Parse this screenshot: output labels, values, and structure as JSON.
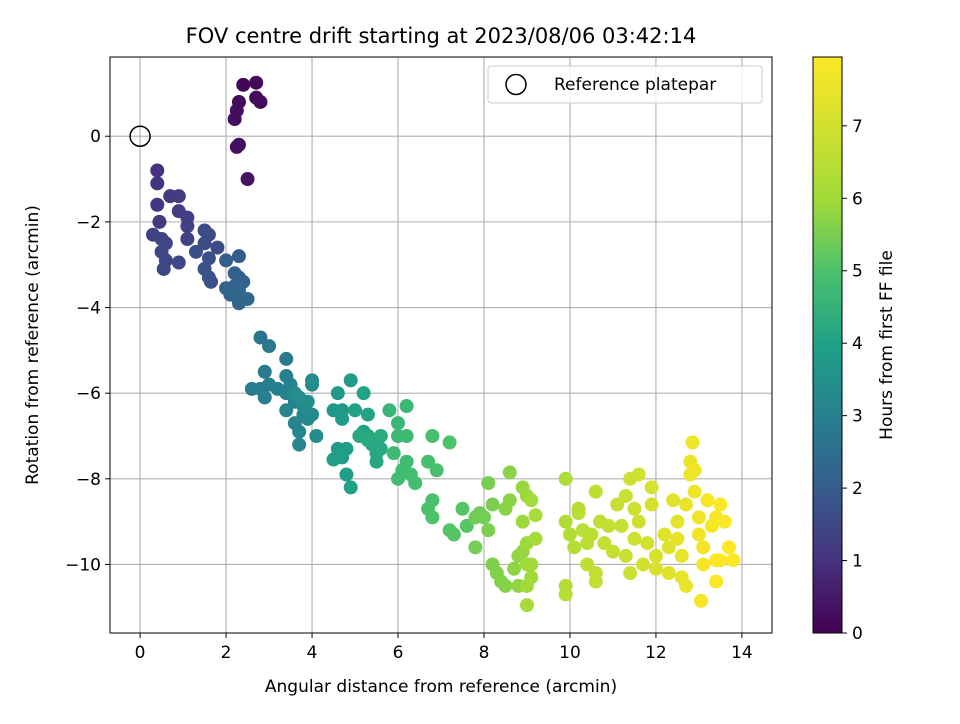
{
  "chart_data": {
    "type": "scatter",
    "title": "FOV centre drift starting at 2023/08/06 03:42:14",
    "xlabel": "Angular distance from reference (arcmin)",
    "ylabel": "Rotation from reference (arcmin)",
    "xlim": [
      -0.7,
      14.7
    ],
    "ylim": [
      -11.6,
      1.85
    ],
    "xticks": [
      0,
      2,
      4,
      6,
      8,
      10,
      12,
      14
    ],
    "yticks": [
      0,
      -2,
      -4,
      -6,
      -8,
      -10
    ],
    "xtick_labels": [
      "0",
      "2",
      "4",
      "6",
      "8",
      "10",
      "12",
      "14"
    ],
    "ytick_labels": [
      "0",
      "−2",
      "−4",
      "−6",
      "−8",
      "−10"
    ],
    "grid": true,
    "legend": {
      "placement": "top-right",
      "entries": [
        "Reference platepar"
      ]
    },
    "reference_point": {
      "x": 0,
      "y": 0,
      "name": "Reference platepar",
      "marker": "open-circle"
    },
    "colorbar": {
      "label": "Hours from first FF file",
      "range": [
        0,
        7.95
      ],
      "ticks": [
        0,
        1,
        2,
        3,
        4,
        5,
        6,
        7
      ],
      "tick_labels": [
        "0",
        "1",
        "2",
        "3",
        "4",
        "5",
        "6",
        "7"
      ],
      "colormap": "viridis"
    },
    "points": [
      {
        "x": 2.4,
        "y": 1.2,
        "h": 0.1
      },
      {
        "x": 2.7,
        "y": 1.25,
        "h": 0.12
      },
      {
        "x": 2.7,
        "y": 0.9,
        "h": 0.15
      },
      {
        "x": 2.8,
        "y": 0.8,
        "h": 0.18
      },
      {
        "x": 2.3,
        "y": 0.8,
        "h": 0.2
      },
      {
        "x": 2.25,
        "y": 0.6,
        "h": 0.22
      },
      {
        "x": 2.2,
        "y": 0.4,
        "h": 0.25
      },
      {
        "x": 2.3,
        "y": -0.2,
        "h": 0.28
      },
      {
        "x": 2.25,
        "y": -0.25,
        "h": 0.3
      },
      {
        "x": 2.5,
        "y": -1.0,
        "h": 0.35
      },
      {
        "x": 0.4,
        "y": -0.8,
        "h": 1.0
      },
      {
        "x": 0.4,
        "y": -1.1,
        "h": 1.05
      },
      {
        "x": 0.4,
        "y": -1.6,
        "h": 1.1
      },
      {
        "x": 0.45,
        "y": -2.0,
        "h": 1.15
      },
      {
        "x": 0.7,
        "y": -1.4,
        "h": 1.2
      },
      {
        "x": 0.9,
        "y": -1.4,
        "h": 1.22
      },
      {
        "x": 0.9,
        "y": -1.75,
        "h": 1.25
      },
      {
        "x": 1.1,
        "y": -1.9,
        "h": 1.3
      },
      {
        "x": 1.1,
        "y": -2.1,
        "h": 1.32
      },
      {
        "x": 1.1,
        "y": -2.4,
        "h": 1.35
      },
      {
        "x": 0.3,
        "y": -2.3,
        "h": 1.4
      },
      {
        "x": 0.5,
        "y": -2.4,
        "h": 1.42
      },
      {
        "x": 0.6,
        "y": -2.5,
        "h": 1.44
      },
      {
        "x": 0.5,
        "y": -2.7,
        "h": 1.46
      },
      {
        "x": 0.6,
        "y": -2.9,
        "h": 1.48
      },
      {
        "x": 0.55,
        "y": -3.1,
        "h": 1.5
      },
      {
        "x": 0.9,
        "y": -2.95,
        "h": 1.52
      },
      {
        "x": 1.5,
        "y": -2.2,
        "h": 1.55
      },
      {
        "x": 1.6,
        "y": -2.3,
        "h": 1.58
      },
      {
        "x": 1.5,
        "y": -2.5,
        "h": 1.6
      },
      {
        "x": 1.8,
        "y": -2.6,
        "h": 1.62
      },
      {
        "x": 1.3,
        "y": -2.7,
        "h": 1.65
      },
      {
        "x": 1.6,
        "y": -2.85,
        "h": 1.68
      },
      {
        "x": 1.5,
        "y": -3.1,
        "h": 1.7
      },
      {
        "x": 1.6,
        "y": -3.3,
        "h": 1.72
      },
      {
        "x": 1.65,
        "y": -3.4,
        "h": 1.75
      },
      {
        "x": 2.3,
        "y": -2.8,
        "h": 2.0
      },
      {
        "x": 2.0,
        "y": -2.9,
        "h": 2.05
      },
      {
        "x": 2.2,
        "y": -3.2,
        "h": 2.1
      },
      {
        "x": 2.3,
        "y": -3.3,
        "h": 2.12
      },
      {
        "x": 2.4,
        "y": -3.4,
        "h": 2.15
      },
      {
        "x": 2.2,
        "y": -3.5,
        "h": 2.18
      },
      {
        "x": 2.0,
        "y": -3.55,
        "h": 2.2
      },
      {
        "x": 2.1,
        "y": -3.7,
        "h": 2.22
      },
      {
        "x": 2.3,
        "y": -3.9,
        "h": 2.25
      },
      {
        "x": 2.5,
        "y": -3.8,
        "h": 2.28
      },
      {
        "x": 2.3,
        "y": -3.6,
        "h": 2.3
      },
      {
        "x": 2.8,
        "y": -4.7,
        "h": 2.7
      },
      {
        "x": 3.0,
        "y": -4.9,
        "h": 2.75
      },
      {
        "x": 3.4,
        "y": -5.2,
        "h": 2.8
      },
      {
        "x": 2.9,
        "y": -5.5,
        "h": 2.85
      },
      {
        "x": 2.6,
        "y": -5.9,
        "h": 2.9
      },
      {
        "x": 2.8,
        "y": -5.9,
        "h": 2.92
      },
      {
        "x": 2.9,
        "y": -6.1,
        "h": 2.95
      },
      {
        "x": 3.0,
        "y": -5.8,
        "h": 2.97
      },
      {
        "x": 3.2,
        "y": -5.9,
        "h": 3.0
      },
      {
        "x": 3.4,
        "y": -5.6,
        "h": 3.02
      },
      {
        "x": 3.5,
        "y": -5.8,
        "h": 3.05
      },
      {
        "x": 3.4,
        "y": -6.0,
        "h": 3.08
      },
      {
        "x": 3.6,
        "y": -6.2,
        "h": 3.1
      },
      {
        "x": 3.4,
        "y": -6.4,
        "h": 3.12
      },
      {
        "x": 3.6,
        "y": -6.7,
        "h": 3.15
      },
      {
        "x": 3.7,
        "y": -6.9,
        "h": 3.18
      },
      {
        "x": 3.8,
        "y": -6.5,
        "h": 3.2
      },
      {
        "x": 3.7,
        "y": -7.2,
        "h": 3.22
      },
      {
        "x": 3.9,
        "y": -6.6,
        "h": 3.25
      },
      {
        "x": 3.8,
        "y": -6.3,
        "h": 3.28
      },
      {
        "x": 4.0,
        "y": -5.8,
        "h": 3.3
      },
      {
        "x": 4.0,
        "y": -6.5,
        "h": 3.32
      },
      {
        "x": 4.1,
        "y": -7.0,
        "h": 3.35
      },
      {
        "x": 4.0,
        "y": -5.7,
        "h": 3.38
      },
      {
        "x": 3.6,
        "y": -6.0,
        "h": 3.4
      },
      {
        "x": 3.7,
        "y": -6.1,
        "h": 3.42
      },
      {
        "x": 3.9,
        "y": -6.2,
        "h": 3.45
      },
      {
        "x": 4.5,
        "y": -6.4,
        "h": 3.7
      },
      {
        "x": 4.6,
        "y": -6.0,
        "h": 3.72
      },
      {
        "x": 4.7,
        "y": -6.4,
        "h": 3.75
      },
      {
        "x": 4.9,
        "y": -5.7,
        "h": 3.78
      },
      {
        "x": 4.7,
        "y": -6.6,
        "h": 3.8
      },
      {
        "x": 4.6,
        "y": -7.3,
        "h": 3.82
      },
      {
        "x": 4.8,
        "y": -7.3,
        "h": 3.85
      },
      {
        "x": 4.5,
        "y": -7.55,
        "h": 3.88
      },
      {
        "x": 4.7,
        "y": -7.5,
        "h": 3.9
      },
      {
        "x": 4.8,
        "y": -7.9,
        "h": 3.92
      },
      {
        "x": 4.9,
        "y": -8.2,
        "h": 3.95
      },
      {
        "x": 5.0,
        "y": -6.4,
        "h": 4.0
      },
      {
        "x": 5.2,
        "y": -6.9,
        "h": 4.02
      },
      {
        "x": 5.2,
        "y": -6.0,
        "h": 4.05
      },
      {
        "x": 5.3,
        "y": -6.5,
        "h": 4.08
      },
      {
        "x": 5.3,
        "y": -7.0,
        "h": 4.1
      },
      {
        "x": 5.4,
        "y": -7.2,
        "h": 4.12
      },
      {
        "x": 5.5,
        "y": -7.4,
        "h": 4.15
      },
      {
        "x": 5.5,
        "y": -7.6,
        "h": 4.18
      },
      {
        "x": 5.6,
        "y": -7.3,
        "h": 4.2
      },
      {
        "x": 5.1,
        "y": -7.0,
        "h": 4.22
      },
      {
        "x": 5.3,
        "y": -7.1,
        "h": 4.25
      },
      {
        "x": 5.6,
        "y": -7.0,
        "h": 4.28
      },
      {
        "x": 5.8,
        "y": -6.4,
        "h": 4.6
      },
      {
        "x": 6.0,
        "y": -6.7,
        "h": 4.62
      },
      {
        "x": 6.2,
        "y": -6.3,
        "h": 4.65
      },
      {
        "x": 6.0,
        "y": -7.0,
        "h": 4.68
      },
      {
        "x": 6.2,
        "y": -7.0,
        "h": 4.7
      },
      {
        "x": 5.9,
        "y": -7.4,
        "h": 4.72
      },
      {
        "x": 6.2,
        "y": -7.6,
        "h": 4.75
      },
      {
        "x": 6.1,
        "y": -7.8,
        "h": 4.78
      },
      {
        "x": 6.0,
        "y": -8.0,
        "h": 4.8
      },
      {
        "x": 6.4,
        "y": -8.1,
        "h": 4.82
      },
      {
        "x": 6.3,
        "y": -7.9,
        "h": 4.85
      },
      {
        "x": 6.7,
        "y": -7.6,
        "h": 4.88
      },
      {
        "x": 6.8,
        "y": -7.0,
        "h": 4.9
      },
      {
        "x": 6.9,
        "y": -7.8,
        "h": 4.92
      },
      {
        "x": 6.8,
        "y": -8.5,
        "h": 4.95
      },
      {
        "x": 6.7,
        "y": -8.7,
        "h": 4.98
      },
      {
        "x": 6.8,
        "y": -8.9,
        "h": 5.0
      },
      {
        "x": 7.2,
        "y": -7.15,
        "h": 5.02
      },
      {
        "x": 7.2,
        "y": -9.2,
        "h": 5.05
      },
      {
        "x": 7.3,
        "y": -9.3,
        "h": 5.08
      },
      {
        "x": 7.5,
        "y": -8.7,
        "h": 5.1
      },
      {
        "x": 7.6,
        "y": -9.1,
        "h": 5.12
      },
      {
        "x": 7.8,
        "y": -8.9,
        "h": 5.4
      },
      {
        "x": 7.9,
        "y": -8.8,
        "h": 5.42
      },
      {
        "x": 8.0,
        "y": -8.9,
        "h": 5.45
      },
      {
        "x": 7.8,
        "y": -9.6,
        "h": 5.48
      },
      {
        "x": 8.1,
        "y": -8.1,
        "h": 5.5
      },
      {
        "x": 8.2,
        "y": -8.6,
        "h": 5.52
      },
      {
        "x": 8.1,
        "y": -9.2,
        "h": 5.55
      },
      {
        "x": 8.2,
        "y": -10.0,
        "h": 5.58
      },
      {
        "x": 8.3,
        "y": -10.2,
        "h": 5.6
      },
      {
        "x": 8.4,
        "y": -10.4,
        "h": 5.62
      },
      {
        "x": 8.5,
        "y": -10.5,
        "h": 5.65
      },
      {
        "x": 8.6,
        "y": -7.85,
        "h": 5.68
      },
      {
        "x": 8.5,
        "y": -8.7,
        "h": 5.7
      },
      {
        "x": 8.6,
        "y": -8.5,
        "h": 5.72
      },
      {
        "x": 8.7,
        "y": -10.1,
        "h": 5.75
      },
      {
        "x": 8.8,
        "y": -10.5,
        "h": 5.78
      },
      {
        "x": 8.8,
        "y": -9.8,
        "h": 5.8
      },
      {
        "x": 8.9,
        "y": -9.7,
        "h": 5.82
      },
      {
        "x": 8.9,
        "y": -8.2,
        "h": 5.85
      },
      {
        "x": 9.0,
        "y": -8.4,
        "h": 5.88
      },
      {
        "x": 8.9,
        "y": -9.0,
        "h": 5.9
      },
      {
        "x": 9.0,
        "y": -9.5,
        "h": 5.92
      },
      {
        "x": 9.0,
        "y": -10.0,
        "h": 5.95
      },
      {
        "x": 9.1,
        "y": -10.3,
        "h": 5.97
      },
      {
        "x": 9.0,
        "y": -10.5,
        "h": 6.0
      },
      {
        "x": 9.1,
        "y": -10.0,
        "h": 6.02
      },
      {
        "x": 9.2,
        "y": -9.4,
        "h": 6.05
      },
      {
        "x": 9.1,
        "y": -8.5,
        "h": 6.07
      },
      {
        "x": 9.0,
        "y": -10.95,
        "h": 6.1
      },
      {
        "x": 9.2,
        "y": -8.85,
        "h": 6.12
      },
      {
        "x": 9.9,
        "y": -8.0,
        "h": 6.3
      },
      {
        "x": 9.9,
        "y": -9.0,
        "h": 6.32
      },
      {
        "x": 10.0,
        "y": -9.3,
        "h": 6.35
      },
      {
        "x": 10.1,
        "y": -9.6,
        "h": 6.38
      },
      {
        "x": 9.9,
        "y": -10.5,
        "h": 6.4
      },
      {
        "x": 9.9,
        "y": -10.7,
        "h": 6.42
      },
      {
        "x": 10.2,
        "y": -8.7,
        "h": 6.45
      },
      {
        "x": 10.2,
        "y": -8.8,
        "h": 6.48
      },
      {
        "x": 10.3,
        "y": -9.2,
        "h": 6.5
      },
      {
        "x": 10.4,
        "y": -9.5,
        "h": 6.52
      },
      {
        "x": 10.5,
        "y": -9.3,
        "h": 6.55
      },
      {
        "x": 10.4,
        "y": -10.0,
        "h": 6.58
      },
      {
        "x": 10.6,
        "y": -10.2,
        "h": 6.6
      },
      {
        "x": 10.6,
        "y": -8.3,
        "h": 6.62
      },
      {
        "x": 10.7,
        "y": -9.0,
        "h": 6.65
      },
      {
        "x": 10.8,
        "y": -9.5,
        "h": 6.68
      },
      {
        "x": 10.6,
        "y": -10.4,
        "h": 6.7
      },
      {
        "x": 10.9,
        "y": -9.1,
        "h": 6.72
      },
      {
        "x": 11.0,
        "y": -9.7,
        "h": 6.75
      },
      {
        "x": 11.1,
        "y": -8.6,
        "h": 6.78
      },
      {
        "x": 11.2,
        "y": -9.1,
        "h": 6.8
      },
      {
        "x": 11.3,
        "y": -8.4,
        "h": 6.82
      },
      {
        "x": 11.3,
        "y": -9.8,
        "h": 6.85
      },
      {
        "x": 11.4,
        "y": -10.2,
        "h": 6.88
      },
      {
        "x": 11.4,
        "y": -8.0,
        "h": 6.9
      },
      {
        "x": 11.5,
        "y": -8.7,
        "h": 6.92
      },
      {
        "x": 11.6,
        "y": -9.0,
        "h": 6.95
      },
      {
        "x": 11.5,
        "y": -9.4,
        "h": 6.97
      },
      {
        "x": 11.6,
        "y": -7.9,
        "h": 7.0
      },
      {
        "x": 11.7,
        "y": -10.0,
        "h": 7.02
      },
      {
        "x": 11.8,
        "y": -9.5,
        "h": 7.05
      },
      {
        "x": 11.9,
        "y": -8.2,
        "h": 7.08
      },
      {
        "x": 11.9,
        "y": -8.6,
        "h": 7.1
      },
      {
        "x": 12.0,
        "y": -9.8,
        "h": 7.12
      },
      {
        "x": 12.0,
        "y": -10.1,
        "h": 7.15
      },
      {
        "x": 12.2,
        "y": -9.3,
        "h": 7.3
      },
      {
        "x": 12.3,
        "y": -9.6,
        "h": 7.32
      },
      {
        "x": 12.3,
        "y": -10.2,
        "h": 7.35
      },
      {
        "x": 12.4,
        "y": -8.5,
        "h": 7.38
      },
      {
        "x": 12.5,
        "y": -9.0,
        "h": 7.4
      },
      {
        "x": 12.5,
        "y": -9.4,
        "h": 7.42
      },
      {
        "x": 12.6,
        "y": -9.8,
        "h": 7.45
      },
      {
        "x": 12.6,
        "y": -10.3,
        "h": 7.48
      },
      {
        "x": 12.7,
        "y": -8.6,
        "h": 7.5
      },
      {
        "x": 12.7,
        "y": -10.5,
        "h": 7.52
      },
      {
        "x": 12.8,
        "y": -7.6,
        "h": 7.55
      },
      {
        "x": 12.8,
        "y": -7.9,
        "h": 7.58
      },
      {
        "x": 12.85,
        "y": -7.15,
        "h": 7.6
      },
      {
        "x": 12.9,
        "y": -7.8,
        "h": 7.62
      },
      {
        "x": 12.9,
        "y": -8.3,
        "h": 7.65
      },
      {
        "x": 13.0,
        "y": -8.9,
        "h": 7.68
      },
      {
        "x": 13.0,
        "y": -9.3,
        "h": 7.7
      },
      {
        "x": 13.1,
        "y": -9.6,
        "h": 7.72
      },
      {
        "x": 13.1,
        "y": -10.0,
        "h": 7.75
      },
      {
        "x": 13.05,
        "y": -10.85,
        "h": 7.78
      },
      {
        "x": 13.2,
        "y": -8.5,
        "h": 7.8
      },
      {
        "x": 13.3,
        "y": -9.1,
        "h": 7.82
      },
      {
        "x": 13.4,
        "y": -8.9,
        "h": 7.85
      },
      {
        "x": 13.4,
        "y": -9.9,
        "h": 7.88
      },
      {
        "x": 13.4,
        "y": -10.4,
        "h": 7.9
      },
      {
        "x": 13.5,
        "y": -8.6,
        "h": 7.9
      },
      {
        "x": 13.6,
        "y": -9.0,
        "h": 7.92
      },
      {
        "x": 13.7,
        "y": -9.6,
        "h": 7.93
      },
      {
        "x": 13.8,
        "y": -9.9,
        "h": 7.94
      },
      {
        "x": 13.5,
        "y": -9.9,
        "h": 7.95
      }
    ]
  }
}
